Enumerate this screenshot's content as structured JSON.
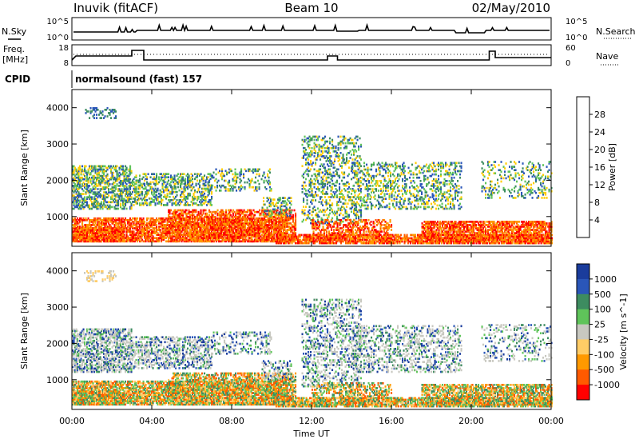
{
  "header": {
    "station": "Inuvik (fitACF)",
    "beam": "Beam 10",
    "date": "02/May/2010"
  },
  "strip_nsky": {
    "left_label": "N.Sky",
    "right_label": "N.Search",
    "left_ticks": [
      "10^5",
      "10^0"
    ],
    "right_ticks": [
      "10^5",
      "10^0"
    ]
  },
  "strip_freq": {
    "left_label_1": "Freq.",
    "left_label_2": "[MHz]",
    "right_label": "Nave",
    "left_ticks": [
      18,
      8
    ],
    "right_ticks": [
      60,
      0
    ]
  },
  "cpid": {
    "label": "CPID",
    "value": "normalsound (fast) 157"
  },
  "colors": {
    "power_scale": [
      "#0022ff",
      "#2a56b8",
      "#3d8c60",
      "#5fc45a",
      "#ffcc00",
      "#ff9900",
      "#ff5a00",
      "#ff0000"
    ],
    "velocity_scale": [
      "#ff0000",
      "#ff5a00",
      "#ff9900",
      "#ffcc66",
      "#c8c8c0",
      "#5fc45a",
      "#3d8c60",
      "#2a56b8",
      "#1a3c9c"
    ]
  },
  "chart_data": [
    {
      "type": "heatmap",
      "name": "power",
      "xlabel": "",
      "ylabel": "Slant Range [km]",
      "x_ticks": [
        "00:00",
        "04:00",
        "08:00",
        "12:00",
        "16:00",
        "20:00",
        "00:00"
      ],
      "xlim": [
        0,
        24
      ],
      "ylim": [
        180,
        4500
      ],
      "y_ticks": [
        1000,
        2000,
        3000,
        4000
      ],
      "colorbar_label": "Power [dB]",
      "colorbar_ticks": [
        4,
        8,
        12,
        16,
        20,
        24,
        28
      ],
      "colorbar_range": [
        0,
        32
      ]
    },
    {
      "type": "heatmap",
      "name": "velocity",
      "xlabel": "Time UT",
      "ylabel": "Slant Range [km]",
      "x_ticks": [
        "00:00",
        "04:00",
        "08:00",
        "12:00",
        "16:00",
        "20:00",
        "00:00"
      ],
      "xlim": [
        0,
        24
      ],
      "ylim": [
        180,
        4500
      ],
      "y_ticks": [
        1000,
        2000,
        3000,
        4000
      ],
      "colorbar_label": "Velocity [m s^-1]",
      "colorbar_ticks": [
        "1000",
        "500",
        "100",
        "25",
        "-25",
        "-100",
        "-500",
        "-1000"
      ]
    }
  ]
}
